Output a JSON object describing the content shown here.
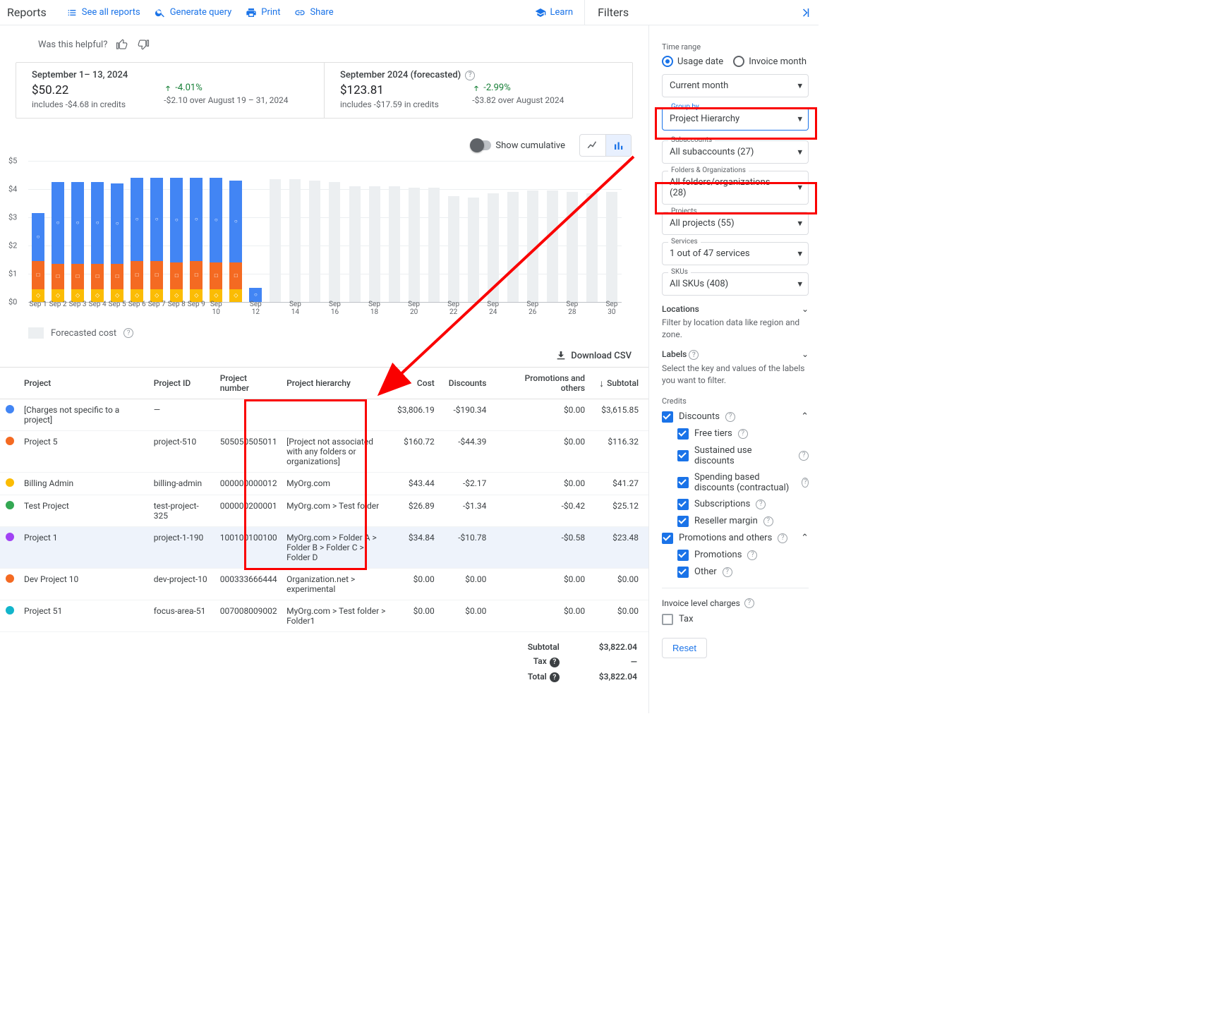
{
  "topbar": {
    "page_title": "Reports",
    "actions": {
      "see_all": "See all reports",
      "generate": "Generate query",
      "print": "Print",
      "share": "Share",
      "learn": "Learn"
    },
    "filters_title": "Filters"
  },
  "helpful": {
    "text": "Was this helpful?"
  },
  "cards": [
    {
      "period": "September 1– 13, 2024",
      "amount": "$50.22",
      "sub": "includes -$4.68 in credits",
      "delta": "-4.01%",
      "delta_sub": "-$2.10 over August 19 – 31, 2024",
      "has_info": false
    },
    {
      "period": "September 2024 (forecasted)",
      "amount": "$123.81",
      "sub": "includes -$17.59 in credits",
      "delta": "-2.99%",
      "delta_sub": "-$3.82 over August 2024",
      "has_info": true
    }
  ],
  "chart": {
    "show_cumulative_label": "Show cumulative",
    "y_axis": {
      "labels": [
        "$0",
        "$1",
        "$2",
        "$3",
        "$4",
        "$5"
      ],
      "max": 5
    },
    "colors": {
      "blue": "#4285f4",
      "orange": "#f46a22",
      "yellow": "#fbbc04",
      "grey": "#eceff1"
    },
    "actual": [
      {
        "x": "Sep 1",
        "blue": 1.7,
        "orange": 1.0,
        "yellow": 0.45
      },
      {
        "x": "Sep 2",
        "blue": 2.9,
        "orange": 0.9,
        "yellow": 0.45
      },
      {
        "x": "Sep 3",
        "blue": 2.9,
        "orange": 0.9,
        "yellow": 0.45
      },
      {
        "x": "Sep 4",
        "blue": 2.9,
        "orange": 0.9,
        "yellow": 0.45
      },
      {
        "x": "Sep 5",
        "blue": 2.85,
        "orange": 0.9,
        "yellow": 0.45
      },
      {
        "x": "Sep 6",
        "blue": 2.95,
        "orange": 1.0,
        "yellow": 0.45
      },
      {
        "x": "Sep 7",
        "blue": 2.95,
        "orange": 1.0,
        "yellow": 0.45
      },
      {
        "x": "Sep 8",
        "blue": 3.0,
        "orange": 0.95,
        "yellow": 0.45
      },
      {
        "x": "Sep 9",
        "blue": 2.95,
        "orange": 1.0,
        "yellow": 0.45
      },
      {
        "x": "Sep 10",
        "blue": 3.0,
        "orange": 0.95,
        "yellow": 0.45
      },
      {
        "x": "",
        "blue": 2.9,
        "orange": 0.95,
        "yellow": 0.45
      },
      {
        "x": "Sep 12",
        "blue": 0.5,
        "orange": 0,
        "yellow": 0
      }
    ],
    "forecast": [
      {
        "x": "",
        "h": 4.35
      },
      {
        "x": "Sep 14",
        "h": 4.35
      },
      {
        "x": "",
        "h": 4.3
      },
      {
        "x": "Sep 16",
        "h": 4.25
      },
      {
        "x": "",
        "h": 4.1
      },
      {
        "x": "Sep 18",
        "h": 4.1
      },
      {
        "x": "",
        "h": 4.1
      },
      {
        "x": "Sep 20",
        "h": 4.05
      },
      {
        "x": "",
        "h": 4.05
      },
      {
        "x": "Sep 22",
        "h": 3.75
      },
      {
        "x": "",
        "h": 3.7
      },
      {
        "x": "Sep 24",
        "h": 3.85
      },
      {
        "x": "",
        "h": 3.9
      },
      {
        "x": "Sep 26",
        "h": 3.95
      },
      {
        "x": "",
        "h": 3.95
      },
      {
        "x": "Sep 28",
        "h": 3.9
      },
      {
        "x": "",
        "h": 3.85
      },
      {
        "x": "Sep 30",
        "h": 3.9
      }
    ],
    "legend": "Forecasted cost"
  },
  "download_csv": "Download CSV",
  "table": {
    "columns": [
      "Project",
      "Project ID",
      "Project number",
      "Project hierarchy",
      "Cost",
      "Discounts",
      "Promotions and others",
      "Subtotal"
    ],
    "rows": [
      {
        "color": "#4285f4",
        "project": "[Charges not specific to a project]",
        "pid": "—",
        "pnum": "",
        "hier": "",
        "cost": "$3,806.19",
        "disc": "-$190.34",
        "promo": "$0.00",
        "sub": "$3,615.85"
      },
      {
        "color": "#f46a22",
        "project": "Project 5",
        "pid": "project-510",
        "pnum": "505050505011",
        "hier": "[Project not associated with any folders or organizations]",
        "cost": "$160.72",
        "disc": "-$44.39",
        "promo": "$0.00",
        "sub": "$116.32"
      },
      {
        "color": "#fbbc04",
        "project": "Billing Admin",
        "pid": "billing-admin",
        "pnum": "000000000012",
        "hier": "MyOrg.com",
        "cost": "$43.44",
        "disc": "-$2.17",
        "promo": "$0.00",
        "sub": "$41.27"
      },
      {
        "color": "#34a853",
        "project": "Test Project",
        "pid": "test-project-325",
        "pnum": "000000200001",
        "hier": "MyOrg.com > Test folder",
        "cost": "$26.89",
        "disc": "-$1.34",
        "promo": "-$0.42",
        "sub": "$25.12"
      },
      {
        "color": "#a142f4",
        "project": "Project 1",
        "pid": "project-1-190",
        "pnum": "100100100100",
        "hier": "MyOrg.com > Folder A > Folder B > Folder C > Folder D",
        "cost": "$34.84",
        "disc": "-$10.78",
        "promo": "-$0.58",
        "sub": "$23.48",
        "highlight": true
      },
      {
        "color": "#f46a22",
        "project": "Dev Project 10",
        "pid": "dev-project-10",
        "pnum": "000333666444",
        "hier": "Organization.net > experimental",
        "cost": "$0.00",
        "disc": "$0.00",
        "promo": "$0.00",
        "sub": "$0.00"
      },
      {
        "color": "#12b5cb",
        "project": "Project 51",
        "pid": "focus-area-51",
        "pnum": "007008009002",
        "hier": "MyOrg.com > Test folder > Folder1",
        "cost": "$0.00",
        "disc": "$0.00",
        "promo": "$0.00",
        "sub": "$0.00"
      }
    ],
    "summary": {
      "subtotal_k": "Subtotal",
      "subtotal_v": "$3,822.04",
      "tax_k": "Tax",
      "tax_v": "—",
      "total_k": "Total",
      "total_v": "$3,822.04"
    }
  },
  "filters": {
    "time_range_label": "Time range",
    "radio_usage": "Usage date",
    "radio_invoice": "Invoice month",
    "current_month": "Current month",
    "group_by": {
      "label": "Group by",
      "value": "Project Hierarchy"
    },
    "subaccounts": {
      "label": "Subaccounts",
      "value": "All subaccounts (27)"
    },
    "folders": {
      "label": "Folders & Organizations",
      "value": "All folders/organizations (28)"
    },
    "projects": {
      "label": "Projects",
      "value": "All projects (55)"
    },
    "services": {
      "label": "Services",
      "value": "1 out of 47 services"
    },
    "skus": {
      "label": "SKUs",
      "value": "All SKUs (408)"
    },
    "locations": {
      "title": "Locations",
      "sub": "Filter by location data like region and zone."
    },
    "labels": {
      "title": "Labels",
      "sub": "Select the key and values of the labels you want to filter."
    },
    "credits_title": "Credits",
    "credits": {
      "discounts": "Discounts",
      "free_tiers": "Free tiers",
      "sustained": "Sustained use discounts",
      "spending": "Spending based discounts (contractual)",
      "subscriptions": "Subscriptions",
      "reseller": "Reseller margin",
      "promos_others": "Promotions and others",
      "promotions": "Promotions",
      "other": "Other"
    },
    "invoice_level": {
      "title": "Invoice level charges",
      "tax": "Tax"
    },
    "reset": "Reset"
  }
}
